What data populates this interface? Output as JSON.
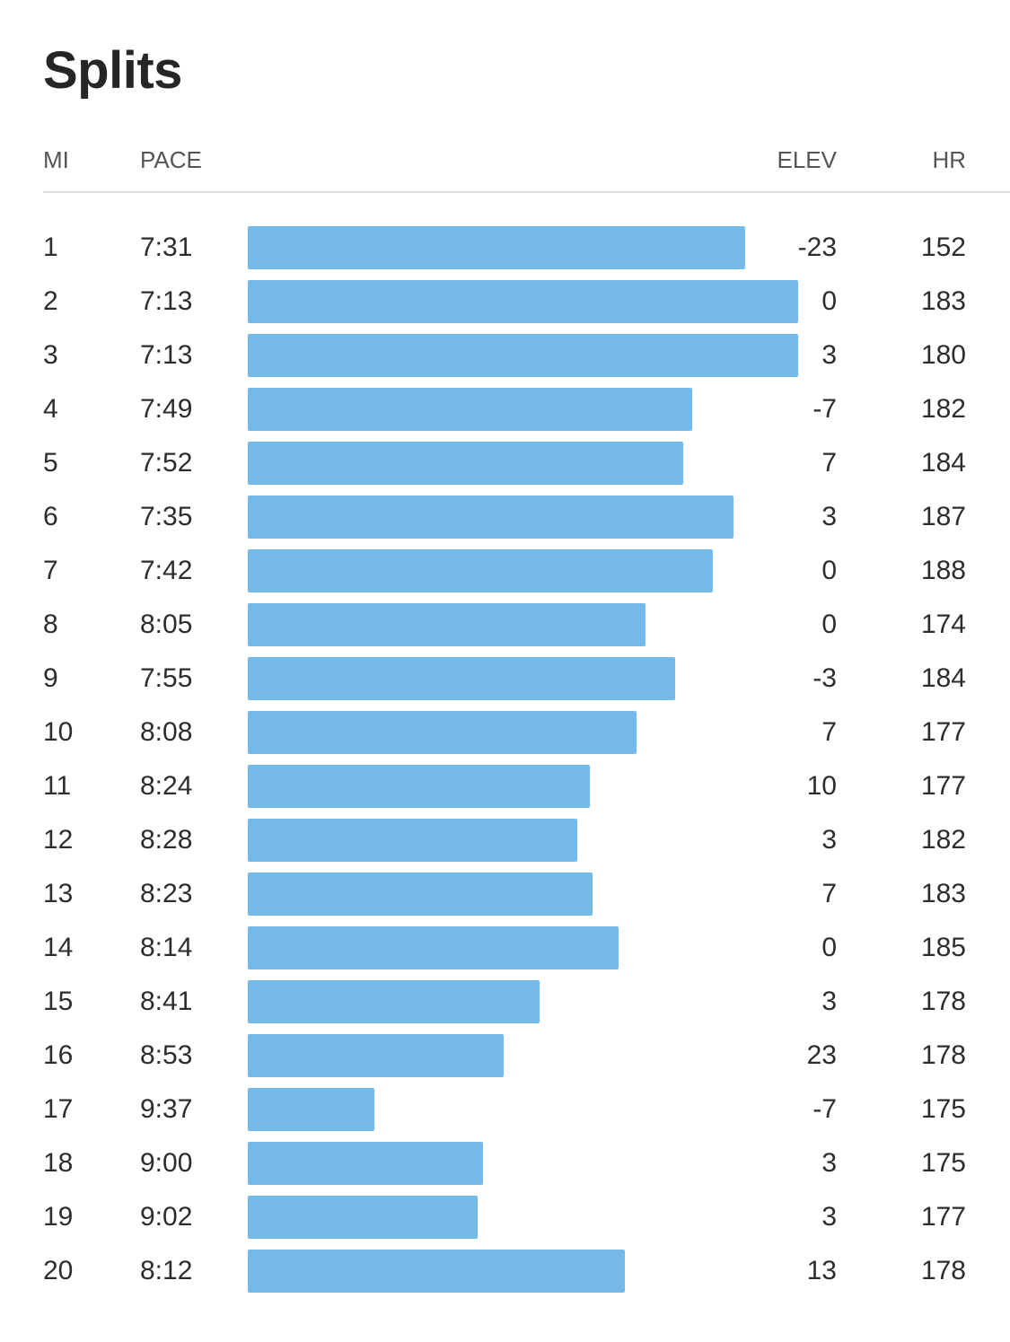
{
  "title": "Splits",
  "headers": {
    "mi": "MI",
    "pace": "PACE",
    "elev": "ELEV",
    "hr": "HR"
  },
  "colors": {
    "bar": "#74b9ea",
    "rule": "#dddddd"
  },
  "chart_data": {
    "type": "bar",
    "orientation": "horizontal",
    "categories": [
      "1",
      "2",
      "3",
      "4",
      "5",
      "6",
      "7",
      "8",
      "9",
      "10",
      "11",
      "12",
      "13",
      "14",
      "15",
      "16",
      "17",
      "18",
      "19",
      "20"
    ],
    "series": [
      {
        "values": [
          "7:31",
          "7:13",
          "7:13",
          "7:49",
          "7:52",
          "7:35",
          "7:42",
          "8:05",
          "7:55",
          "8:08",
          "8:24",
          "8:28",
          "8:23",
          "8:14",
          "8:41",
          "8:53",
          "9:37",
          "9:00",
          "9:02",
          "8:12"
        ]
      }
    ],
    "elev": [
      "-23",
      "0",
      "3",
      "-7",
      "7",
      "3",
      "0",
      "0",
      "-3",
      "7",
      "10",
      "3",
      "7",
      "0",
      "3",
      "23",
      "-7",
      "3",
      "3",
      "13"
    ],
    "hr": [
      "152",
      "183",
      "180",
      "182",
      "184",
      "187",
      "188",
      "174",
      "184",
      "177",
      "177",
      "182",
      "183",
      "185",
      "178",
      "178",
      "175",
      "175",
      "177",
      "178"
    ],
    "grid": false
  }
}
